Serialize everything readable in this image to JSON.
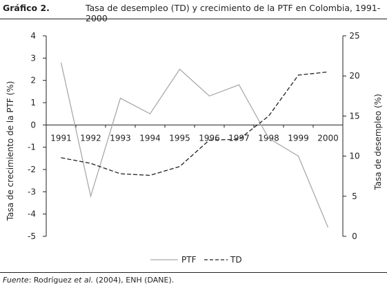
{
  "header": {
    "label": "Gráfico 2.",
    "title": "Tasa de desempleo (TD) y crecimiento de la PTF en Colombia, 1991-2000"
  },
  "source": {
    "prefix": "Fuente",
    "middle": ": Rodríguez ",
    "italic": "et al.",
    "suffix": " (2004), ENH (DANE)."
  },
  "colors": {
    "ptf": "#a7a9ac",
    "td": "#231f20",
    "axis": "#231f20"
  },
  "chart_data": {
    "type": "line",
    "categories": [
      "1991",
      "1992",
      "1993",
      "1994",
      "1995",
      "1996",
      "1997",
      "1998",
      "1999",
      "2000"
    ],
    "y_left": {
      "label": "Tasa de crecimiento de la PTF (%)",
      "range": [
        -5,
        4
      ],
      "ticks": [
        4,
        3,
        2,
        1,
        0,
        -1,
        -2,
        -3,
        -4,
        -5
      ]
    },
    "y_right": {
      "label": "Tasa de desempleo (%)",
      "range": [
        0,
        25
      ],
      "ticks": [
        25,
        20,
        15,
        10,
        5,
        0
      ]
    },
    "series": [
      {
        "name": "PTF",
        "axis": "left",
        "style": "solid",
        "values": [
          2.8,
          -3.2,
          1.2,
          0.5,
          2.5,
          1.3,
          1.8,
          -0.6,
          -1.4,
          -4.6
        ]
      },
      {
        "name": "TD",
        "axis": "right",
        "style": "dashed",
        "values": [
          9.8,
          9.1,
          7.8,
          7.6,
          8.7,
          12.0,
          12.1,
          15.0,
          20.1,
          20.5
        ]
      }
    ],
    "legend": "bottom-center",
    "grid": false
  }
}
